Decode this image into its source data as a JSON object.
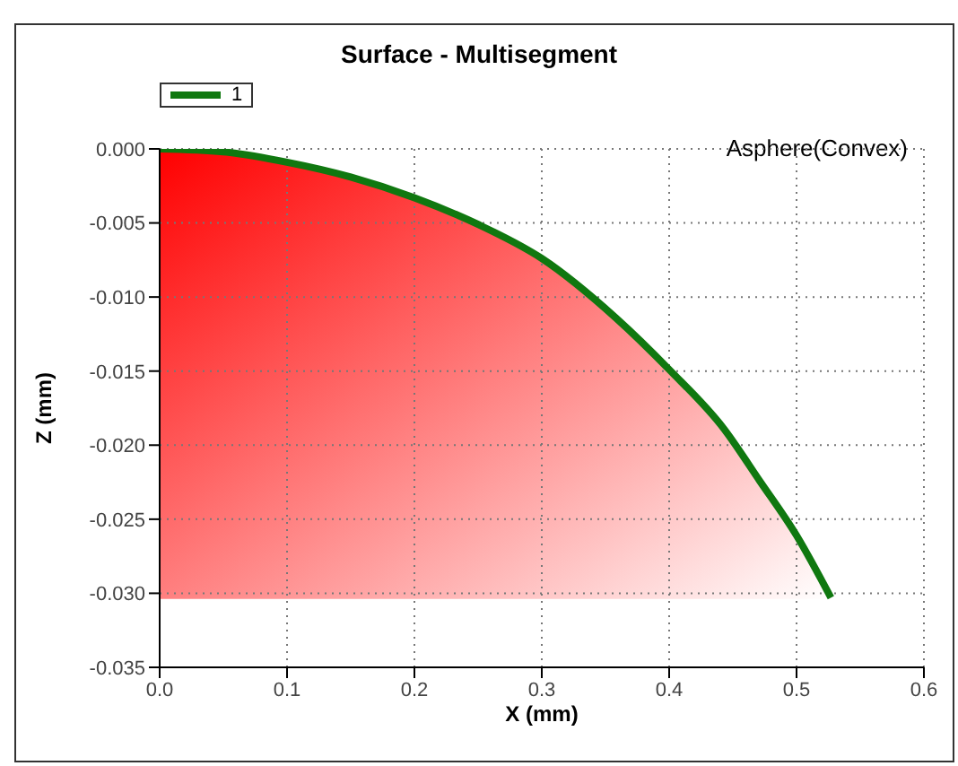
{
  "chart_data": {
    "type": "line",
    "title": "Surface - Multisegment",
    "xlabel": "X (mm)",
    "ylabel": "Z (mm)",
    "annotations": [
      "Asphere(Convex)"
    ],
    "x": [
      0,
      0.05,
      0.1,
      0.15,
      0.2,
      0.25,
      0.3,
      0.358,
      0.4,
      0.443,
      0.471,
      0.5,
      0.527
    ],
    "series": [
      {
        "name": "1",
        "color": "#107810",
        "values": [
          0,
          -0.0002,
          -0.0009,
          -0.0019,
          -0.0033,
          -0.0051,
          -0.0074,
          -0.0114,
          -0.0149,
          -0.0189,
          -0.0224,
          -0.0261,
          -0.0303
        ]
      }
    ],
    "xlim": [
      0,
      0.6
    ],
    "xticks": [
      {
        "value": 0,
        "label": "0.0"
      },
      {
        "value": 0.1,
        "label": "0.1"
      },
      {
        "value": 0.2,
        "label": "0.2"
      },
      {
        "value": 0.3,
        "label": "0.3"
      },
      {
        "value": 0.4,
        "label": "0.4"
      },
      {
        "value": 0.5,
        "label": "0.5"
      },
      {
        "value": 0.6,
        "label": "0.6"
      }
    ],
    "ylim": [
      -0.035,
      0
    ],
    "yticks": [
      {
        "value": 0,
        "label": "0.000"
      },
      {
        "value": -0.005,
        "label": "-0.005"
      },
      {
        "value": -0.01,
        "label": "-0.010"
      },
      {
        "value": -0.015,
        "label": "-0.015"
      },
      {
        "value": -0.02,
        "label": "-0.020"
      },
      {
        "value": -0.025,
        "label": "-0.025"
      },
      {
        "value": -0.03,
        "label": "-0.030"
      },
      {
        "value": -0.035,
        "label": "-0.035"
      }
    ],
    "grid": true,
    "legend": "top left"
  }
}
